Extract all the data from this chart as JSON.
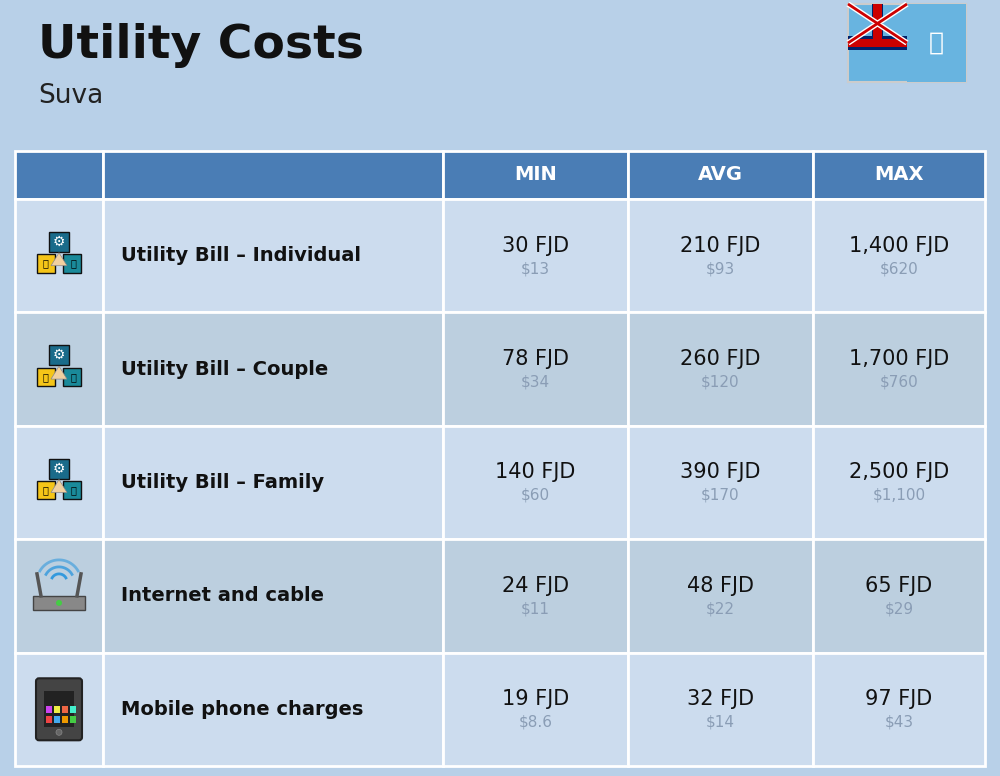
{
  "title": "Utility Costs",
  "subtitle": "Suva",
  "background_color": "#b8d0e8",
  "header_bg_color": "#4a7db5",
  "header_text_color": "#ffffff",
  "row_bg_color_1": "#ccdcee",
  "row_bg_color_2": "#bccfdf",
  "separator_color": "#ffffff",
  "col_header_labels": [
    "MIN",
    "AVG",
    "MAX"
  ],
  "rows": [
    {
      "label": "Utility Bill – Individual",
      "min_fjd": "30 FJD",
      "min_usd": "$13",
      "avg_fjd": "210 FJD",
      "avg_usd": "$93",
      "max_fjd": "1,400 FJD",
      "max_usd": "$620"
    },
    {
      "label": "Utility Bill – Couple",
      "min_fjd": "78 FJD",
      "min_usd": "$34",
      "avg_fjd": "260 FJD",
      "avg_usd": "$120",
      "max_fjd": "1,700 FJD",
      "max_usd": "$760"
    },
    {
      "label": "Utility Bill – Family",
      "min_fjd": "140 FJD",
      "min_usd": "$60",
      "avg_fjd": "390 FJD",
      "avg_usd": "$170",
      "max_fjd": "2,500 FJD",
      "max_usd": "$1,100"
    },
    {
      "label": "Internet and cable",
      "min_fjd": "24 FJD",
      "min_usd": "$11",
      "avg_fjd": "48 FJD",
      "avg_usd": "$22",
      "max_fjd": "65 FJD",
      "max_usd": "$29"
    },
    {
      "label": "Mobile phone charges",
      "min_fjd": "19 FJD",
      "min_usd": "$8.6",
      "avg_fjd": "32 FJD",
      "avg_usd": "$14",
      "max_fjd": "97 FJD",
      "max_usd": "$43"
    }
  ],
  "title_fontsize": 34,
  "subtitle_fontsize": 19,
  "header_fontsize": 14,
  "label_fontsize": 14,
  "value_fontsize": 15,
  "usd_fontsize": 11,
  "usd_color": "#8a9db5",
  "flag_bg": "#68b4e0",
  "flag_border": "#cccccc"
}
